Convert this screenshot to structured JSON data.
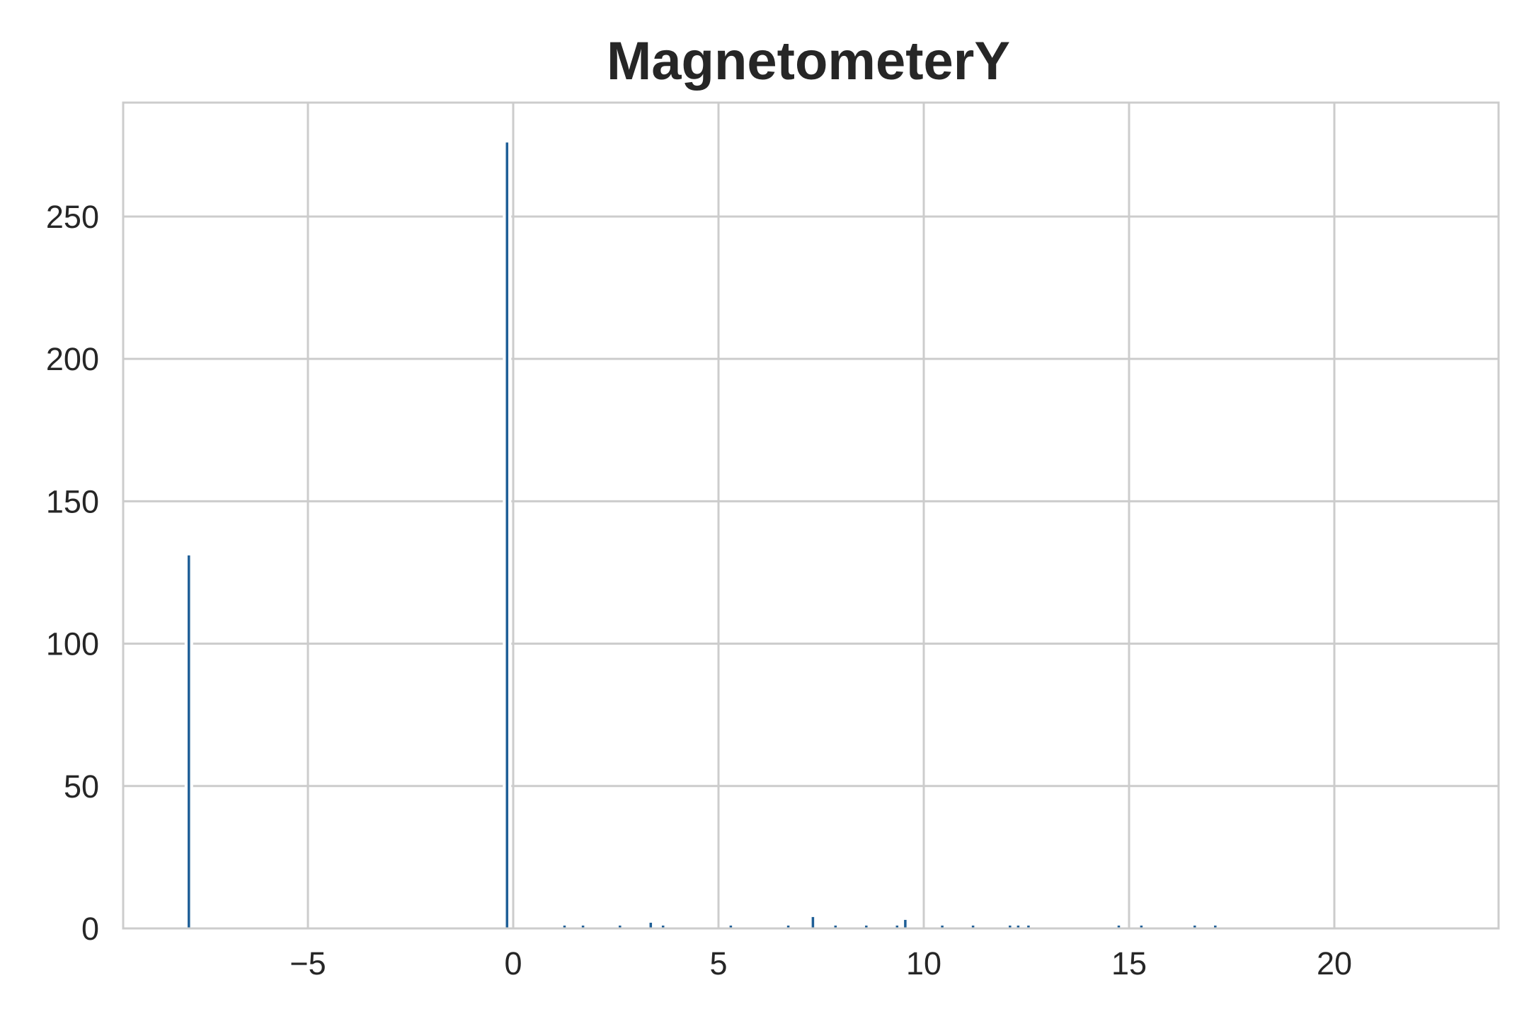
{
  "chart_data": {
    "type": "bar",
    "title": "MagnetometerY",
    "xlabel": "",
    "ylabel": "",
    "xlim": [
      -9.5,
      24
    ],
    "ylim": [
      0,
      290
    ],
    "xticks": [
      -5,
      0,
      5,
      10,
      15,
      20
    ],
    "xtick_labels": [
      "−5",
      "0",
      "5",
      "10",
      "15",
      "20"
    ],
    "yticks": [
      0,
      50,
      100,
      150,
      200,
      250
    ],
    "ytick_labels": [
      "0",
      "50",
      "100",
      "150",
      "200",
      "250"
    ],
    "grid": true,
    "bar_color": "#1f5f97",
    "x": [
      -7.9,
      -0.15,
      1.25,
      1.7,
      2.6,
      3.35,
      3.65,
      5.3,
      6.7,
      7.3,
      7.85,
      8.6,
      9.35,
      9.55,
      10.45,
      11.2,
      12.1,
      12.3,
      12.55,
      14.75,
      15.3,
      16.6,
      17.1
    ],
    "values": [
      131,
      276,
      1,
      1,
      1,
      2,
      1,
      1,
      1,
      4,
      1,
      1,
      1,
      3,
      1,
      1,
      1,
      1,
      1,
      1,
      1,
      1,
      1
    ]
  }
}
